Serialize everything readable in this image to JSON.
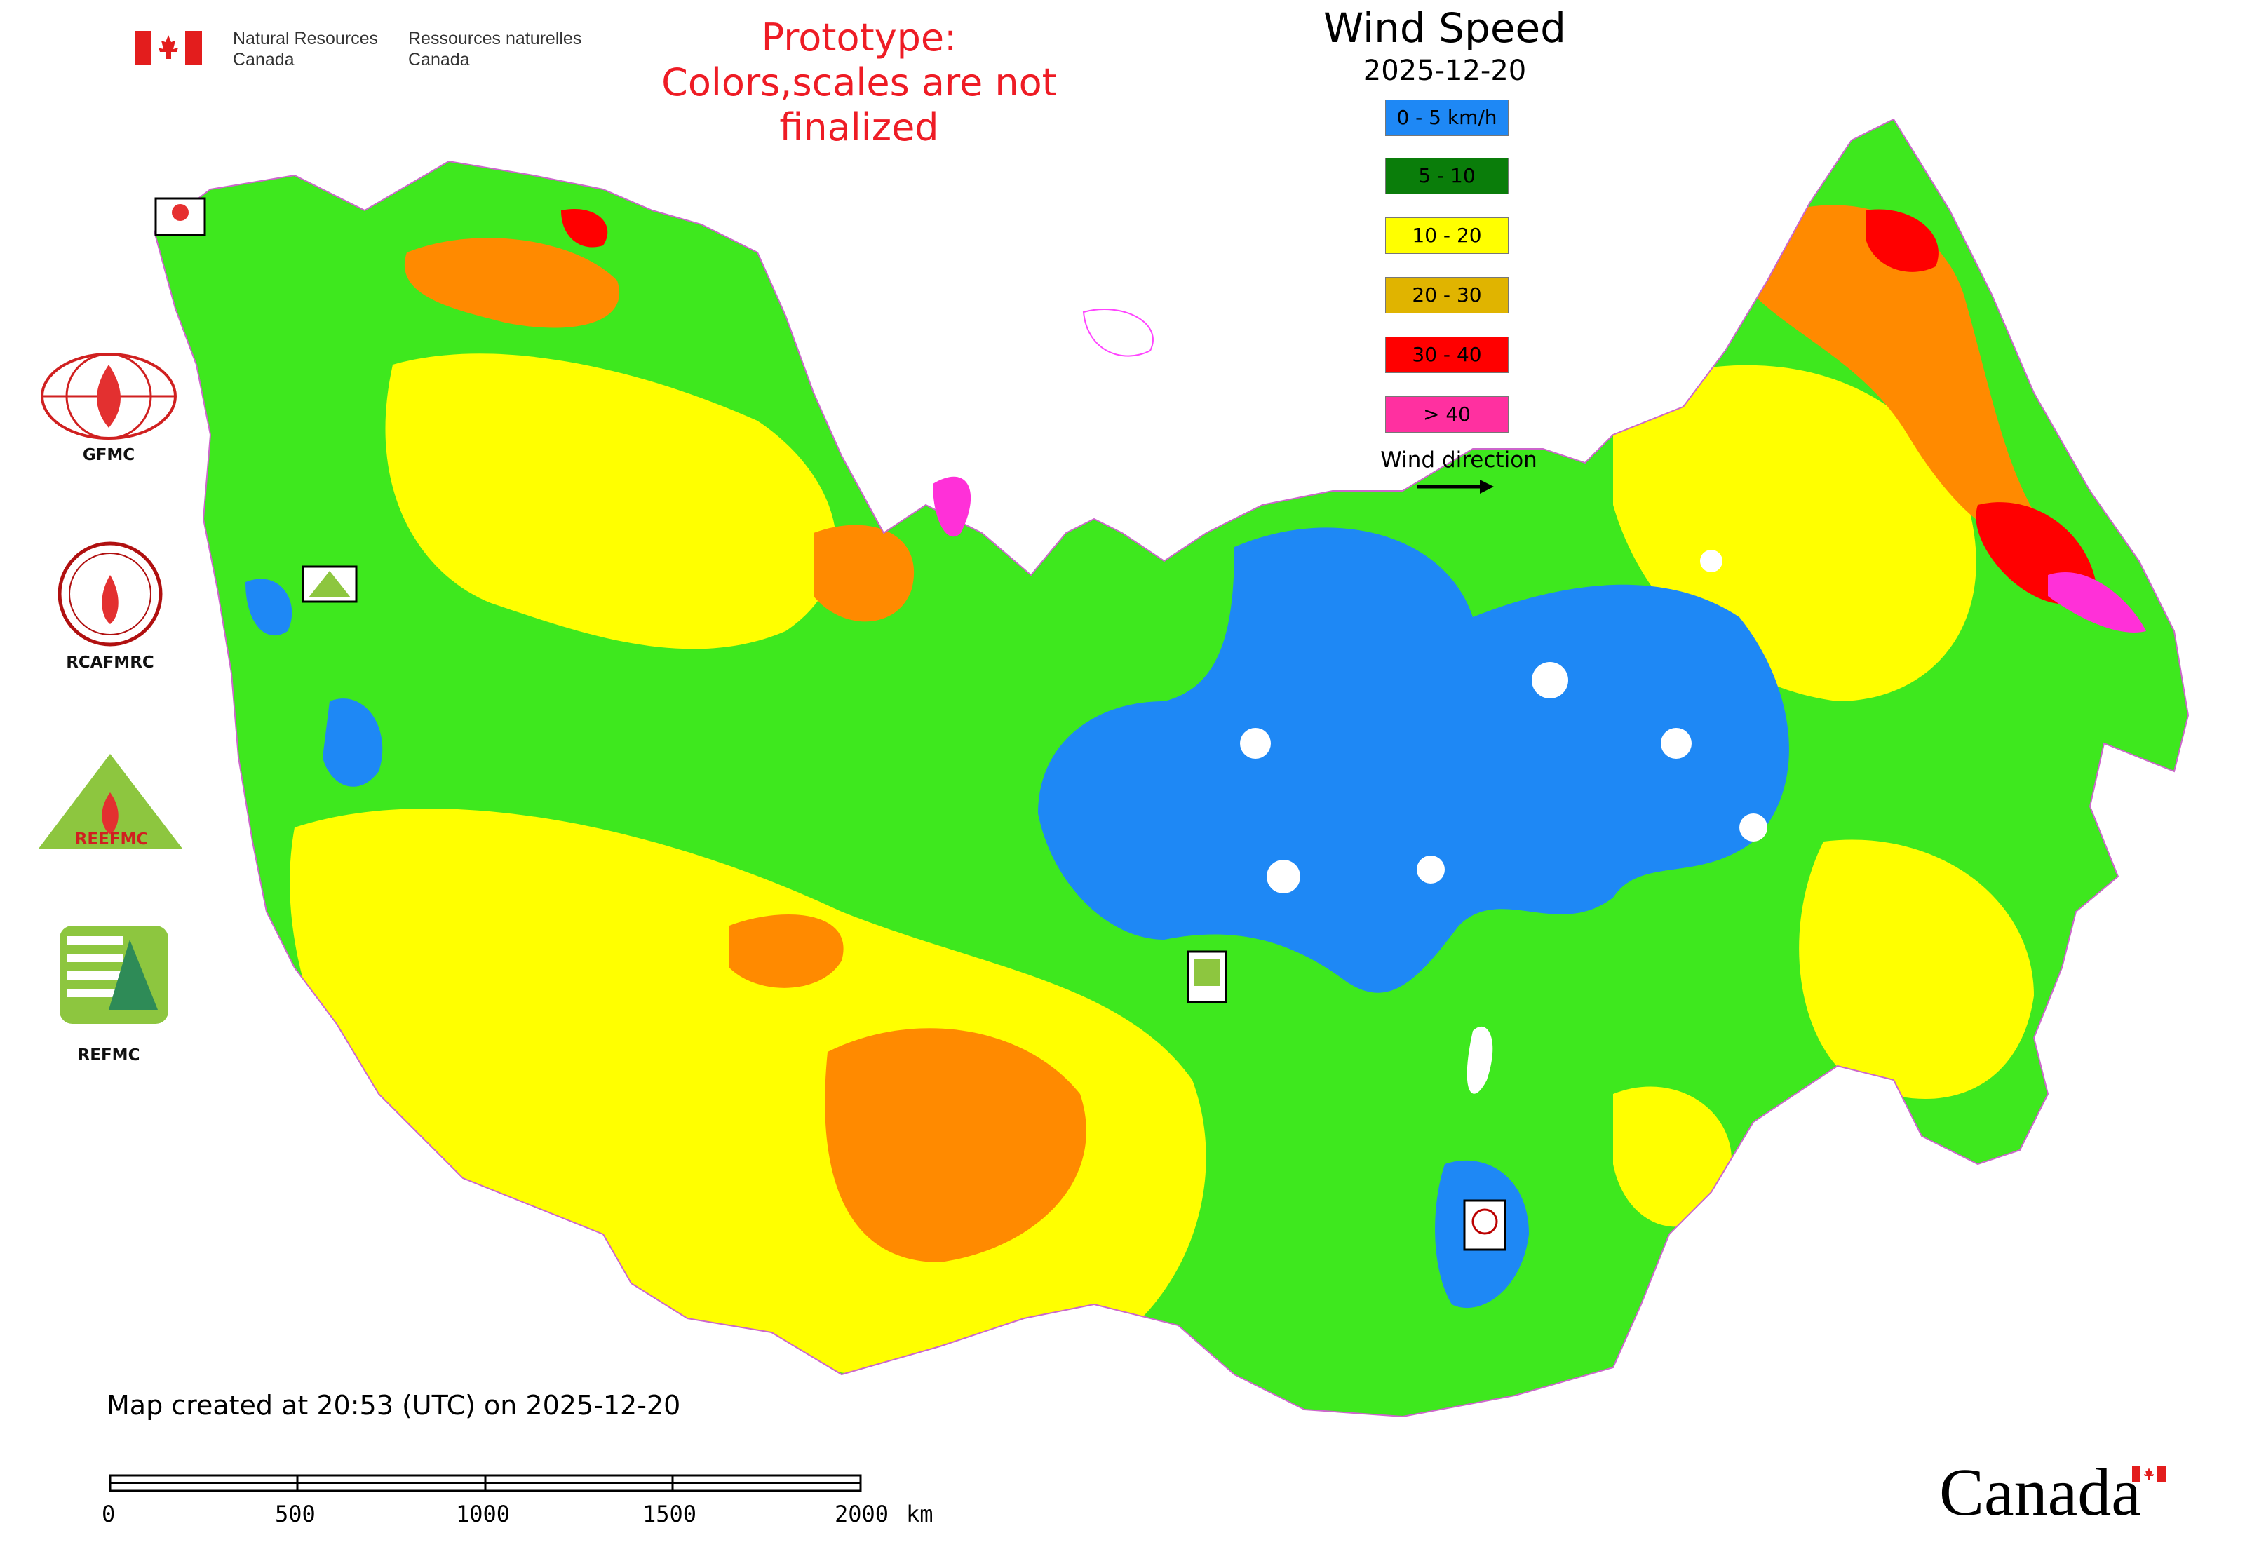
{
  "header": {
    "agency_en_line1": "Natural Resources",
    "agency_en_line2": "Canada",
    "agency_fr_line1": "Ressources naturelles",
    "agency_fr_line2": "Canada",
    "prototype_line1": "Prototype:",
    "prototype_line2": "Colors,scales are not finalized"
  },
  "map": {
    "title": "Wind Speed",
    "date": "2025-12-20",
    "created_note": "Map created at 20:53 (UTC) on 2025-12-20",
    "wind_direction_label": "Wind direction",
    "legend": [
      {
        "label": "0 - 5 km/h",
        "color": "#1e88f5"
      },
      {
        "label": "5 - 10",
        "color": "#0a7d0a"
      },
      {
        "label": "10 - 20",
        "color": "#ffff00"
      },
      {
        "label": "20 - 30",
        "color": "#e0b400"
      },
      {
        "label": "30 - 40",
        "color": "#ff0000"
      },
      {
        "label": "> 40",
        "color": "#ff30a0"
      }
    ],
    "region_colors": {
      "calm": "#1e88f5",
      "light": "#3ee81e",
      "moderate": "#ffff00",
      "fresh": "#ff8a00",
      "strong": "#ff0000",
      "gale": "#ff30d8"
    }
  },
  "logos": {
    "gfmc": "GFMC",
    "rcafmrc": "RCAFMRC",
    "reefmc": "REEFMC",
    "refmc": "REFMC"
  },
  "scale_bar": {
    "ticks": [
      "0",
      "500",
      "1000",
      "1500",
      "2000"
    ],
    "unit": "km"
  },
  "footer": {
    "wordmark": "Canada"
  },
  "icons": {
    "flag": "canada-flag-icon",
    "arrow": "right-arrow-icon"
  }
}
